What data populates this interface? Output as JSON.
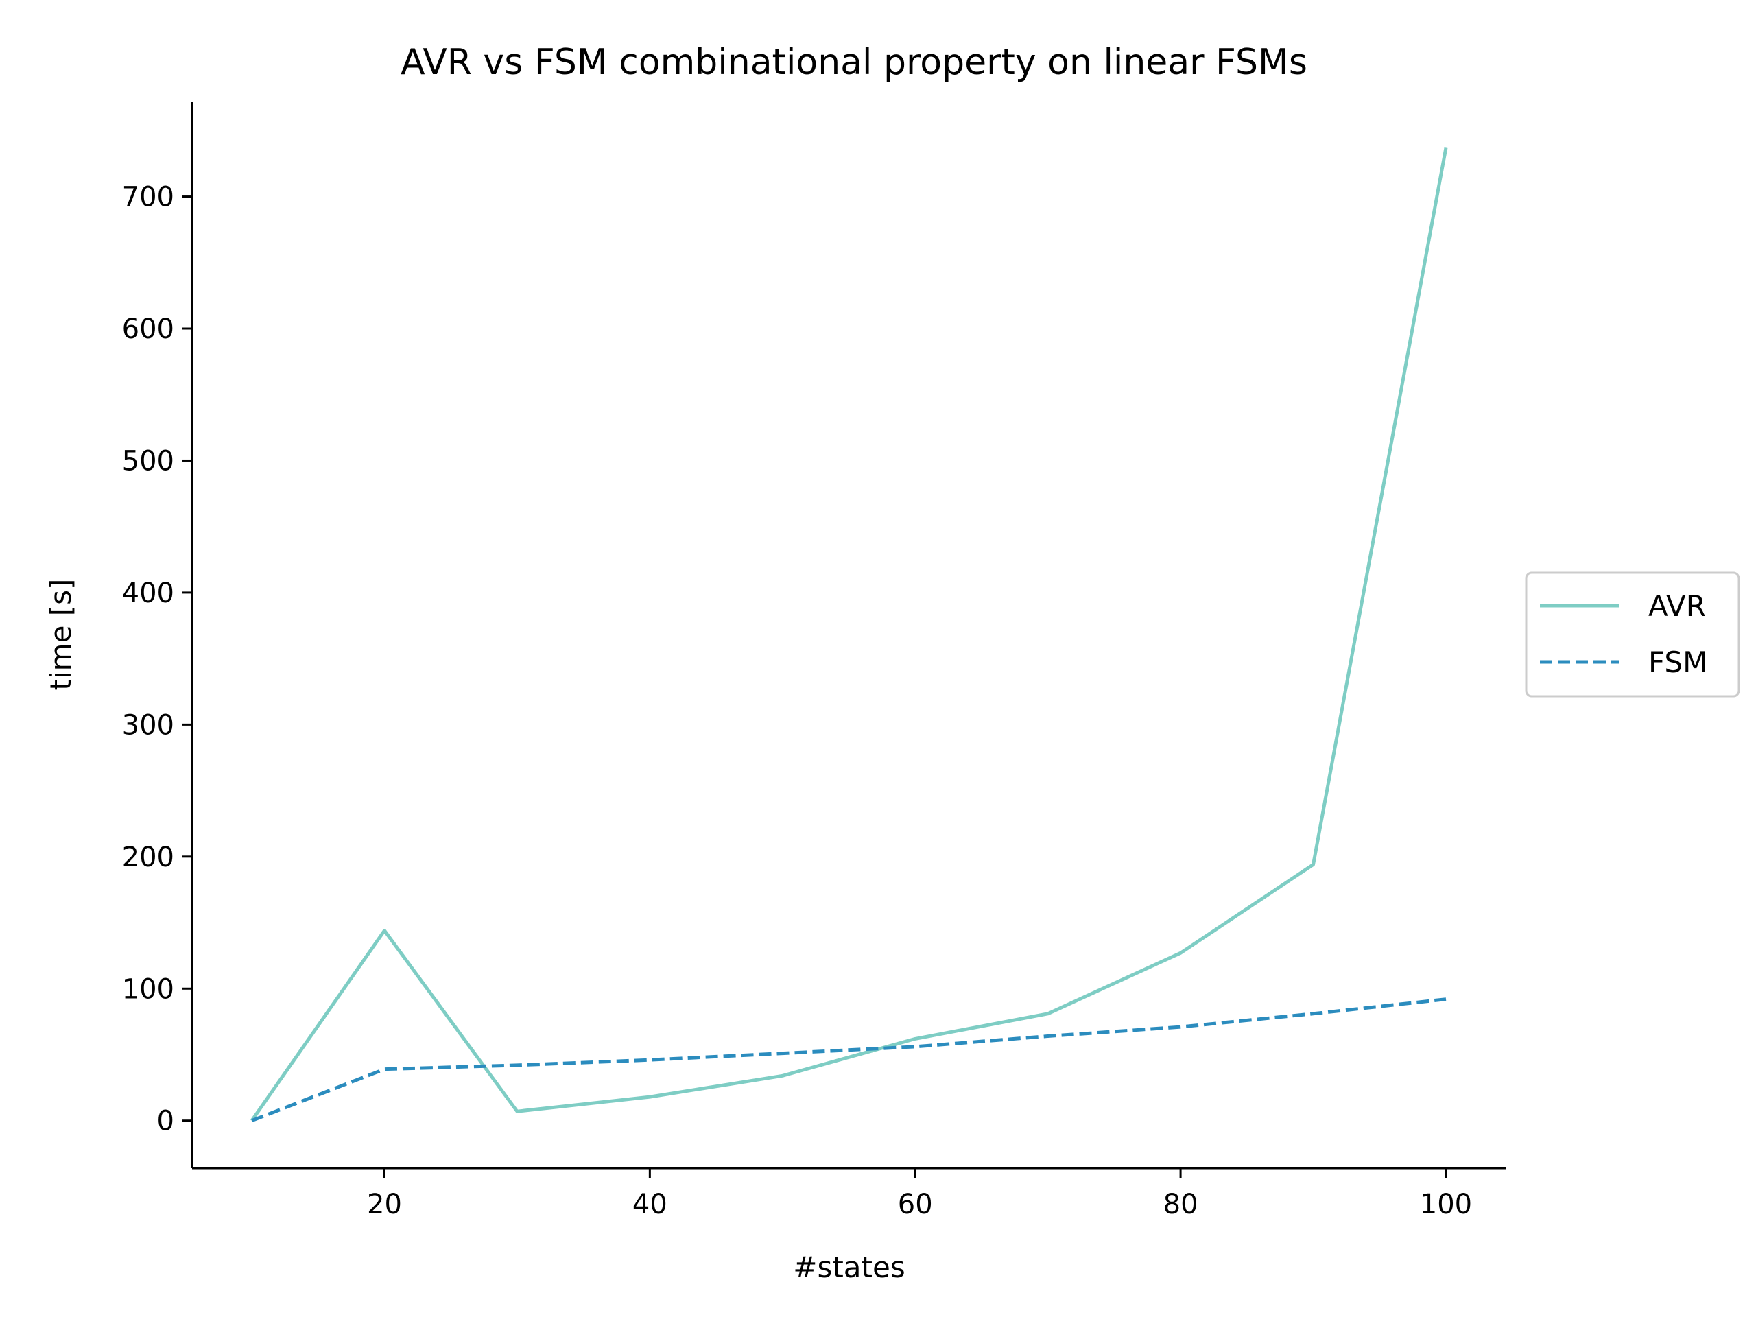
{
  "chart_data": {
    "type": "line",
    "title": "AVR vs FSM combinational property on linear FSMs",
    "xlabel": "#states",
    "ylabel": "time [s]",
    "x": [
      10,
      20,
      30,
      40,
      50,
      60,
      70,
      80,
      90,
      100
    ],
    "series": [
      {
        "name": "AVR",
        "values": [
          0,
          144,
          7,
          18,
          34,
          62,
          81,
          127,
          194,
          737
        ],
        "color": "#7ecdc4",
        "style": "solid"
      },
      {
        "name": "FSM",
        "values": [
          0,
          39,
          42,
          46,
          51,
          56,
          64,
          71,
          81,
          92
        ],
        "color": "#2b8cbe",
        "style": "dashed"
      }
    ],
    "xlim": [
      5.5,
      104.5
    ],
    "ylim": [
      -36,
      772
    ],
    "xticks": [
      20,
      40,
      60,
      80,
      100
    ],
    "yticks": [
      0,
      100,
      200,
      300,
      400,
      500,
      600,
      700
    ],
    "grid": false,
    "legend": "outside-right"
  }
}
